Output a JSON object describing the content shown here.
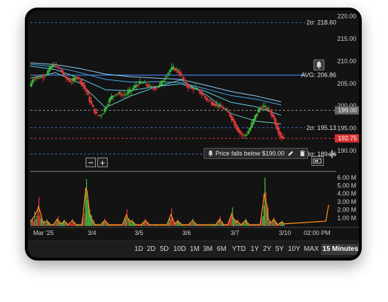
{
  "chart_data": {
    "type": "candlestick",
    "price_axis": {
      "min": 186,
      "max": 221,
      "ticks": [
        220,
        215,
        210,
        205,
        200,
        195,
        190
      ]
    },
    "volume_axis": {
      "min": 0,
      "max": 6500000,
      "tick_labels": [
        "6.00 M",
        "5.00 M",
        "4.00 M",
        "3.00 M",
        "2.00 M",
        "1.00 M"
      ]
    },
    "x_labels": [
      "Mar '25",
      "3/4",
      "3/5",
      "3/6",
      "3/7",
      "3/10",
      "02:00 PM"
    ],
    "levels": {
      "plus_2sigma": {
        "label": "2σ: 218.60",
        "value": 218.6
      },
      "avg": {
        "label": "AVG: 206.86",
        "value": 206.86
      },
      "minus_2sigma": {
        "label": "2σ: 195.13",
        "value": 195.13
      },
      "minus_3sigma": {
        "label": "3σ: 189.26",
        "value": 189.26
      },
      "prev_close": {
        "label": "199.00",
        "value": 199.0
      },
      "last_price": {
        "label": "192.75",
        "value": 192.75
      }
    },
    "price_path": [
      [
        0,
        204.3
      ],
      [
        4,
        206.1
      ],
      [
        8,
        206.3
      ],
      [
        12,
        206.3
      ],
      [
        16,
        206.6
      ],
      [
        20,
        207.2
      ],
      [
        24,
        208.2
      ],
      [
        26,
        208.8
      ],
      [
        28,
        209.1
      ],
      [
        30,
        209.1
      ],
      [
        32,
        208.9
      ],
      [
        34,
        208.6
      ],
      [
        36,
        208.2
      ],
      [
        38,
        207.8
      ],
      [
        40,
        207.1
      ],
      [
        44,
        206.1
      ],
      [
        48,
        205.5
      ],
      [
        52,
        205.7
      ],
      [
        56,
        206.5
      ],
      [
        60,
        205.9
      ],
      [
        64,
        204.6
      ],
      [
        68,
        203.1
      ],
      [
        72,
        201.1
      ],
      [
        76,
        199.4
      ],
      [
        80,
        198.0
      ],
      [
        84,
        197.8
      ],
      [
        88,
        198.6
      ],
      [
        92,
        200.1
      ],
      [
        96,
        201.5
      ],
      [
        100,
        202.4
      ],
      [
        104,
        202.8
      ],
      [
        108,
        202.7
      ],
      [
        112,
        202.5
      ],
      [
        116,
        202.7
      ],
      [
        120,
        203.3
      ],
      [
        124,
        204.0
      ],
      [
        128,
        204.7
      ],
      [
        132,
        205.1
      ],
      [
        136,
        205.1
      ],
      [
        140,
        204.7
      ],
      [
        144,
        204.2
      ],
      [
        148,
        203.9
      ],
      [
        152,
        204.1
      ],
      [
        156,
        204.7
      ],
      [
        160,
        205.8
      ],
      [
        164,
        207.0
      ],
      [
        168,
        208.0
      ],
      [
        172,
        208.4
      ],
      [
        176,
        208.0
      ],
      [
        180,
        207.1
      ],
      [
        184,
        205.8
      ],
      [
        188,
        204.6
      ],
      [
        192,
        203.9
      ],
      [
        196,
        203.9
      ],
      [
        200,
        203.7
      ],
      [
        204,
        203.0
      ],
      [
        208,
        202.2
      ],
      [
        212,
        201.4
      ],
      [
        216,
        200.9
      ],
      [
        220,
        200.5
      ],
      [
        224,
        200.2
      ],
      [
        228,
        199.8
      ],
      [
        232,
        199.4
      ],
      [
        236,
        198.8
      ],
      [
        240,
        197.8
      ],
      [
        244,
        196.5
      ],
      [
        248,
        195.0
      ],
      [
        252,
        193.9
      ],
      [
        256,
        193.3
      ],
      [
        260,
        193.8
      ],
      [
        264,
        195.1
      ],
      [
        268,
        196.9
      ],
      [
        272,
        198.5
      ],
      [
        276,
        199.6
      ],
      [
        280,
        199.8
      ],
      [
        284,
        199.4
      ],
      [
        288,
        198.7
      ],
      [
        292,
        197.3
      ],
      [
        296,
        195.1
      ],
      [
        300,
        193.3
      ],
      [
        304,
        192.75
      ]
    ],
    "ma_lines": [
      {
        "color": "#8fd0ff",
        "path": [
          [
            0,
            209.6
          ],
          [
            30,
            209.2
          ],
          [
            60,
            208.3
          ],
          [
            90,
            207.1
          ],
          [
            120,
            206.5
          ],
          [
            150,
            206.2
          ],
          [
            180,
            205.9
          ],
          [
            210,
            204.6
          ],
          [
            240,
            203.2
          ],
          [
            270,
            202.2
          ],
          [
            300,
            200.9
          ]
        ]
      },
      {
        "color": "#3fa9f5",
        "path": [
          [
            0,
            209.3
          ],
          [
            30,
            208.7
          ],
          [
            60,
            207.4
          ],
          [
            90,
            205.9
          ],
          [
            120,
            205.3
          ],
          [
            150,
            205.4
          ],
          [
            180,
            205.2
          ],
          [
            210,
            203.8
          ],
          [
            240,
            202.3
          ],
          [
            270,
            201.5
          ],
          [
            300,
            200.2
          ]
        ]
      },
      {
        "color": "#5cd3e8",
        "path": [
          [
            0,
            208.9
          ],
          [
            30,
            208.1
          ],
          [
            60,
            206.1
          ],
          [
            90,
            203.6
          ],
          [
            120,
            203.4
          ],
          [
            150,
            204.3
          ],
          [
            180,
            204.9
          ],
          [
            210,
            203.2
          ],
          [
            240,
            200.8
          ],
          [
            270,
            199.8
          ],
          [
            300,
            197.9
          ]
        ]
      },
      {
        "color": "#6ad1c8",
        "path": [
          [
            0,
            206.2
          ],
          [
            30,
            207.4
          ],
          [
            60,
            205.0
          ],
          [
            90,
            199.6
          ],
          [
            120,
            202.2
          ],
          [
            150,
            204.2
          ],
          [
            180,
            205.8
          ],
          [
            210,
            202.5
          ],
          [
            240,
            198.3
          ],
          [
            270,
            196.6
          ],
          [
            300,
            196.0
          ]
        ]
      }
    ],
    "volume_spikes": [
      [
        0,
        0.7
      ],
      [
        6,
        1.8
      ],
      [
        12,
        3.6
      ],
      [
        16,
        0.9
      ],
      [
        24,
        0.8
      ],
      [
        40,
        1.2
      ],
      [
        50,
        0.8
      ],
      [
        62,
        0.9
      ],
      [
        82,
        5.8
      ],
      [
        84,
        3.2
      ],
      [
        90,
        1.3
      ],
      [
        110,
        0.9
      ],
      [
        142,
        2.1
      ],
      [
        150,
        0.8
      ],
      [
        170,
        0.9
      ],
      [
        208,
        2.2
      ],
      [
        218,
        0.8
      ],
      [
        240,
        0.9
      ],
      [
        280,
        1.2
      ],
      [
        298,
        2.3
      ],
      [
        306,
        0.8
      ],
      [
        318,
        0.9
      ],
      [
        346,
        6.0
      ],
      [
        350,
        2.1
      ],
      [
        360,
        1.1
      ],
      [
        372,
        0.6
      ]
    ]
  },
  "alert": {
    "label": "Price falls below $190.00",
    "target": 190.0
  },
  "zoom": {
    "minus": "−",
    "plus": "+"
  },
  "toolbar": {
    "ranges": [
      "1D",
      "2D",
      "5D",
      "10D",
      "1M",
      "3M",
      "6M",
      "YTD",
      "1Y",
      "2Y",
      "5Y",
      "10Y",
      "MAX",
      "15 Minutes"
    ],
    "active_range": "15 Minutes"
  },
  "icons": {
    "alert": "bell-icon",
    "edit": "pencil-icon",
    "delete": "trash-icon",
    "add": "crosshair-plus-icon",
    "tag": "price-tag-icon"
  }
}
